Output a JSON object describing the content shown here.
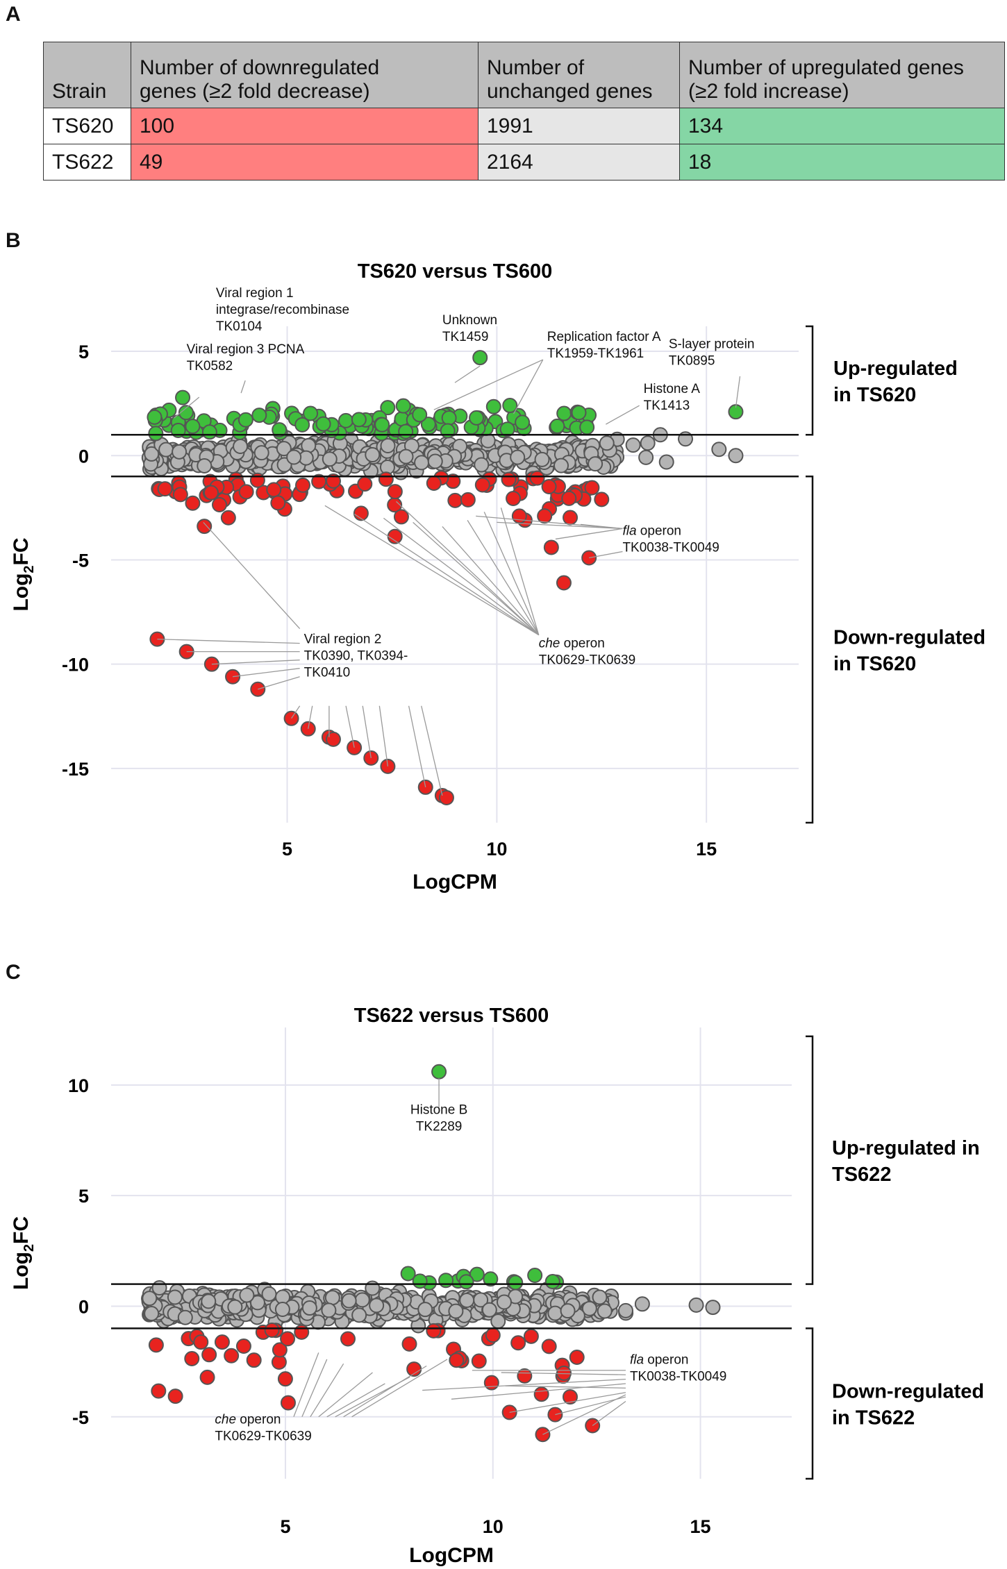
{
  "panel_labels": [
    "A",
    "B",
    "C"
  ],
  "table": {
    "headers": [
      "Strain",
      "Number of downregulated genes (≥2 fold decrease)",
      "Number of unchanged genes",
      "Number of upregulated genes (≥2 fold increase)"
    ],
    "header_lines": [
      [
        "Strain"
      ],
      [
        "Number of downregulated",
        "genes (≥2 fold decrease)"
      ],
      [
        "Number of",
        "unchanged genes"
      ],
      [
        "Number of upregulated genes",
        "(≥2 fold increase)"
      ]
    ],
    "rows": [
      {
        "strain": "TS620",
        "down": "100",
        "unchanged": "1991",
        "up": "134"
      },
      {
        "strain": "TS622",
        "down": "49",
        "unchanged": "2164",
        "up": "18"
      }
    ],
    "colors": {
      "down": "#ff7f7f",
      "unchanged": "#e6e6e6",
      "up": "#85d6a5",
      "header": "#bdbdbd"
    }
  },
  "chart_data": [
    {
      "type": "scatter",
      "panel": "B",
      "title": "TS620 versus TS600",
      "xlabel": "LogCPM",
      "ylabel_main": "Log",
      "ylabel_sub": "2",
      "ylabel_end": "FC",
      "xlim": [
        0.8,
        17.2
      ],
      "ylim": [
        -17.6,
        6.2
      ],
      "xticks": [
        5,
        10,
        15
      ],
      "yticks": [
        5,
        0,
        -5,
        -10,
        -15
      ],
      "threshold_lines": [
        1,
        -1
      ],
      "colors": {
        "up": "#3fbe3c",
        "down": "#e8231f",
        "unchanged": "#b4b4b4"
      },
      "side_labels": [
        {
          "lines": [
            "Up-regulated",
            "in TS620"
          ],
          "range": [
            1,
            6.2
          ]
        },
        {
          "lines": [
            "Down-regulated",
            "in TS620"
          ],
          "range": [
            -17.6,
            -1
          ]
        }
      ],
      "annotations": [
        {
          "lines": [
            "Viral region 3 PCNA",
            "TK0582"
          ],
          "x": 2.6,
          "y": 4.9,
          "anchor": "start"
        },
        {
          "lines": [
            "Viral region 1",
            "integrase/recombinase",
            "TK0104"
          ],
          "x": 3.3,
          "y": 7.6,
          "anchor": "start"
        },
        {
          "lines": [
            "Unknown",
            "TK1459"
          ],
          "x": 8.7,
          "y": 6.3,
          "anchor": "start"
        },
        {
          "lines": [
            "Replication factor A",
            "TK1959-TK1961"
          ],
          "x": 11.2,
          "y": 5.5,
          "anchor": "start"
        },
        {
          "lines": [
            "S-layer protein",
            "TK0895"
          ],
          "x": 14.1,
          "y": 5.15,
          "anchor": "start"
        },
        {
          "lines": [
            "Histone A",
            "TK1413"
          ],
          "x": 13.5,
          "y": 3.0,
          "anchor": "start"
        },
        {
          "lines": [
            "fla operon",
            "TK0038-TK0049"
          ],
          "italic_first_word": "fla",
          "x": 13.0,
          "y": -3.8,
          "anchor": "start"
        },
        {
          "lines": [
            "Viral region 2",
            "TK0390, TK0394-",
            "TK0410"
          ],
          "x": 5.4,
          "y": -9.0,
          "anchor": "start"
        },
        {
          "lines": [
            "che operon",
            "TK0629-TK0639"
          ],
          "italic_first_word": "che",
          "x": 11.0,
          "y": -9.2,
          "anchor": "start"
        }
      ],
      "labeled_points": [
        {
          "x": 15.7,
          "y": 2.1,
          "label": "S-layer protein TK0895"
        },
        {
          "x": 9.6,
          "y": 4.7,
          "label": "Unknown TK1459"
        }
      ],
      "point_counts": {
        "up": 134,
        "down": 100,
        "unchanged": 1991
      }
    },
    {
      "type": "scatter",
      "panel": "C",
      "title": "TS622 versus TS600",
      "xlabel": "LogCPM",
      "ylabel_main": "Log",
      "ylabel_sub": "2",
      "ylabel_end": "FC",
      "xlim": [
        0.8,
        17.2
      ],
      "ylim": [
        -7.8,
        12.6
      ],
      "xticks": [
        5,
        10,
        15
      ],
      "yticks": [
        10,
        5,
        0,
        -5
      ],
      "threshold_lines": [
        1,
        -1
      ],
      "colors": {
        "up": "#3fbe3c",
        "down": "#e8231f",
        "unchanged": "#b4b4b4"
      },
      "side_labels": [
        {
          "lines": [
            "Up-regulated in",
            "TS622"
          ],
          "range": [
            1,
            12.2
          ]
        },
        {
          "lines": [
            "Down-regulated",
            "in TS622"
          ],
          "range": [
            -7.8,
            -1
          ]
        }
      ],
      "annotations": [
        {
          "lines": [
            "Histone B",
            "TK2289"
          ],
          "x": 8.7,
          "y": 8.7,
          "anchor": "middle"
        },
        {
          "lines": [
            "fla operon",
            "TK0038-TK0049"
          ],
          "italic_first_word": "fla",
          "x": 13.3,
          "y": -2.6,
          "anchor": "start"
        },
        {
          "lines": [
            "che operon",
            "TK0629-TK0639"
          ],
          "italic_first_word": "che",
          "x": 3.3,
          "y": -5.3,
          "anchor": "start"
        }
      ],
      "labeled_points": [
        {
          "x": 8.7,
          "y": 10.6,
          "label": "Histone B TK2289"
        }
      ],
      "point_counts": {
        "up": 18,
        "down": 49,
        "unchanged": 2164
      }
    }
  ]
}
